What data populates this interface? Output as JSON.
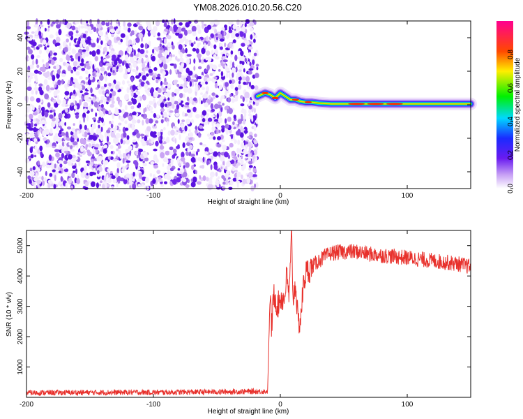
{
  "title": "YM08.2026.010.20.56.C20",
  "chart_data": [
    {
      "type": "heatmap",
      "xlabel": "Height of straight line (km)",
      "ylabel": "Frequency (Hz)",
      "xlim": [
        -200,
        150
      ],
      "ylim": [
        -50,
        50
      ],
      "xticks": [
        -200,
        -100,
        0,
        100
      ],
      "yticks": [
        -40,
        -20,
        0,
        20,
        40
      ],
      "noise_region_x": [
        -200,
        -18
      ],
      "signal_ridge": {
        "x": [
          -18,
          -12,
          -8,
          -4,
          0,
          4,
          8,
          12,
          16,
          20,
          25,
          30,
          40,
          60,
          80,
          100,
          120,
          150
        ],
        "freq": [
          5,
          7,
          6,
          4,
          7,
          5,
          3,
          3,
          2,
          1.5,
          1.5,
          1,
          0.5,
          0.5,
          0.5,
          0.5,
          0.5,
          0.5
        ]
      },
      "colorbar": {
        "label": "Normalized spectral amplitude",
        "ticks": [
          0.0,
          0.2,
          0.4,
          0.6,
          0.8
        ],
        "range": [
          0,
          1
        ]
      }
    },
    {
      "type": "line",
      "xlabel": "Height of straight line (km)",
      "ylabel": "SNR (10 * v/v)",
      "xlim": [
        -200,
        150
      ],
      "ylim": [
        0,
        5500
      ],
      "xticks": [
        -200,
        -100,
        0,
        100
      ],
      "yticks": [
        1000,
        2000,
        3000,
        4000,
        5000
      ],
      "color": "#e8312c",
      "series": [
        {
          "x": [
            -200,
            -150,
            -100,
            -50,
            -10,
            -8,
            -7,
            -5,
            -2,
            0,
            3,
            5,
            7,
            9,
            10,
            12,
            14,
            16,
            18,
            20,
            25,
            30,
            40,
            50,
            60,
            70,
            80,
            100,
            120,
            140,
            150
          ],
          "y": [
            150,
            160,
            165,
            180,
            200,
            3500,
            2300,
            3400,
            3000,
            3300,
            3200,
            4000,
            3300,
            5500,
            3200,
            3800,
            2400,
            2600,
            3600,
            4100,
            4300,
            4500,
            4750,
            4800,
            4800,
            4720,
            4680,
            4600,
            4500,
            4400,
            4300
          ]
        }
      ]
    }
  ]
}
